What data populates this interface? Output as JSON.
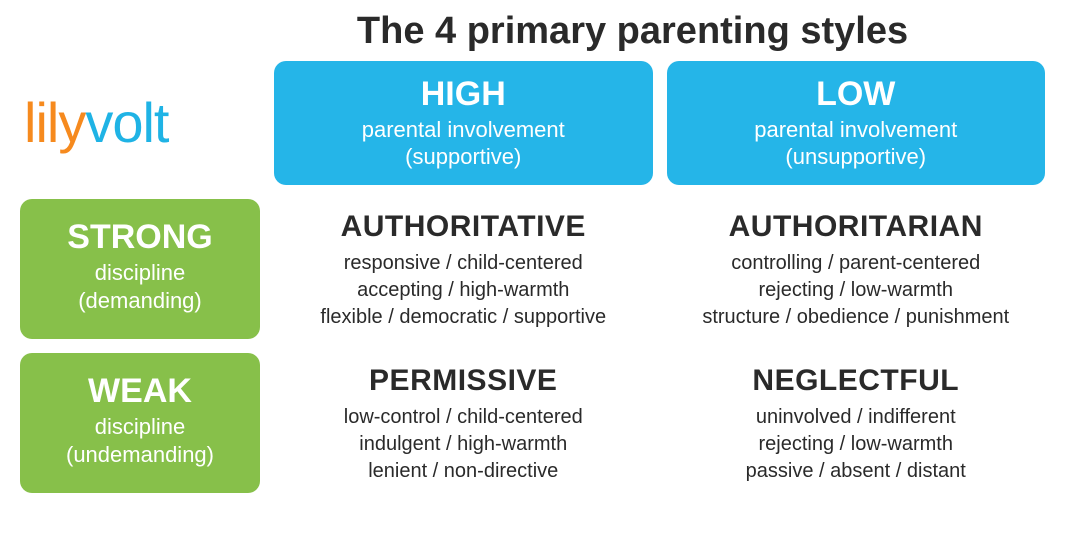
{
  "title": {
    "text": "The 4 primary parenting styles",
    "fontsize": 38,
    "color": "#2a2a2a"
  },
  "logo": {
    "part1": "lily",
    "part2": "volt",
    "color1": "#f68a1e",
    "color2": "#1fb3e5",
    "fontsize": 56
  },
  "colors": {
    "col_header_bg": "#25b5e8",
    "row_header_bg": "#87c04a",
    "header_text": "#ffffff",
    "body_text": "#2a2a2a",
    "background": "#ffffff",
    "border_radius": 12
  },
  "typography": {
    "header_big_fontsize": 34,
    "header_sub_fontsize": 22,
    "cell_name_fontsize": 30,
    "cell_trait_fontsize": 20
  },
  "columns": [
    {
      "level": "HIGH",
      "line1": "parental involvement",
      "line2": "(supportive)"
    },
    {
      "level": "LOW",
      "line1": "parental involvement",
      "line2": "(unsupportive)"
    }
  ],
  "rows": [
    {
      "level": "STRONG",
      "line1": "discipline",
      "line2": "(demanding)"
    },
    {
      "level": "WEAK",
      "line1": "discipline",
      "line2": "(undemanding)"
    }
  ],
  "cells": [
    [
      {
        "name": "AUTHORITATIVE",
        "traits": [
          "responsive / child-centered",
          "accepting / high-warmth",
          "flexible / democratic / supportive"
        ]
      },
      {
        "name": "AUTHORITARIAN",
        "traits": [
          "controlling / parent-centered",
          "rejecting / low-warmth",
          "structure / obedience / punishment"
        ]
      }
    ],
    [
      {
        "name": "PERMISSIVE",
        "traits": [
          "low-control / child-centered",
          "indulgent / high-warmth",
          "lenient / non-directive"
        ]
      },
      {
        "name": "NEGLECTFUL",
        "traits": [
          "uninvolved / indifferent",
          "rejecting / low-warmth",
          "passive / absent / distant"
        ]
      }
    ]
  ]
}
